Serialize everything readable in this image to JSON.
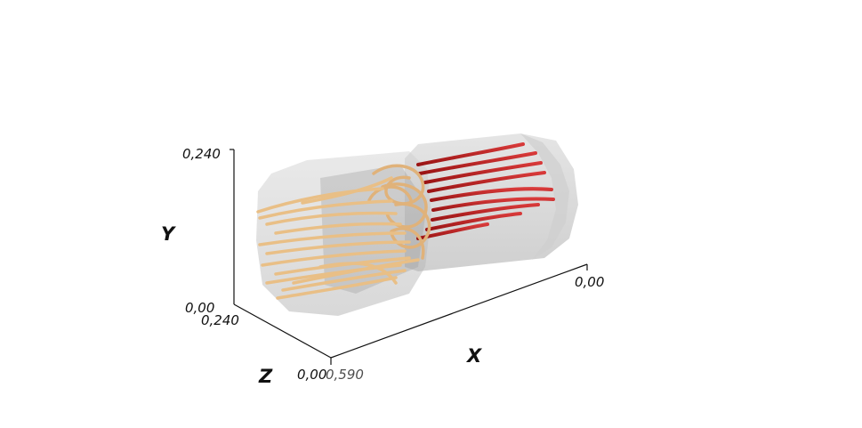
{
  "axes": {
    "x": {
      "title": "X",
      "tick_min": "0,00",
      "tick_max": "0,590"
    },
    "y": {
      "title": "Y",
      "tick_min": "0,00",
      "tick_max": "0,240"
    },
    "z": {
      "title": "Z",
      "tick_min": "0,00",
      "tick_max": "0,240"
    }
  },
  "colors": {
    "background": "#ffffff",
    "pipe": "#b9b9b9",
    "inlet_streamline": "#e9bf86",
    "outlet_streamline": "#c41d1d"
  }
}
